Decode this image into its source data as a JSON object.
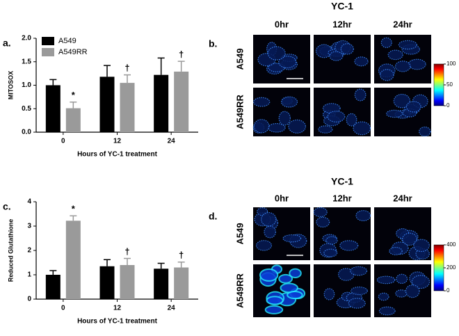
{
  "chart_data": [
    {
      "type": "bar",
      "panel_label": "a.",
      "y_label": "MITOSOX",
      "x_label": "Hours of YC-1 treatment",
      "categories": [
        "0",
        "12",
        "24"
      ],
      "series": [
        {
          "name": "A549",
          "color": "#000000",
          "values": [
            1.0,
            1.18,
            1.22
          ],
          "errors": [
            0.12,
            0.24,
            0.36
          ]
        },
        {
          "name": "A549RR",
          "color": "#9a9a9a",
          "values": [
            0.51,
            1.05,
            1.29
          ],
          "errors": [
            0.13,
            0.17,
            0.22
          ],
          "markers": [
            "*",
            "†",
            "†"
          ]
        }
      ],
      "ylim": [
        0,
        2
      ],
      "yticks": [
        {
          "value": 0,
          "label": "0.0"
        },
        {
          "value": 0.5,
          "label": "0.5"
        },
        {
          "value": 1,
          "label": "1.0"
        },
        {
          "value": 1.5,
          "label": "1.5"
        },
        {
          "value": 2,
          "label": "2.0"
        }
      ],
      "legend": "upper left"
    },
    {
      "type": "bar",
      "panel_label": "c.",
      "y_label": "Reduced Glutathione",
      "x_label": "Hours of YC-1 treatment",
      "categories": [
        "0",
        "12",
        "24"
      ],
      "series": [
        {
          "color": "#000000",
          "values": [
            1.0,
            1.35,
            1.25
          ],
          "errors": [
            0.17,
            0.27,
            0.22
          ]
        },
        {
          "color": "#9a9a9a",
          "values": [
            3.22,
            1.4,
            1.3
          ],
          "errors": [
            0.2,
            0.27,
            0.22
          ],
          "markers": [
            "*",
            "†",
            "†"
          ]
        }
      ],
      "ylim": [
        0,
        4
      ],
      "yticks": [
        0,
        1,
        2,
        3,
        4
      ]
    }
  ],
  "image_panels": [
    {
      "panel_label": "b.",
      "title": "YC-1",
      "columns": [
        "0hr",
        "12hr",
        "24hr"
      ],
      "rows": [
        "A549",
        "A549RR"
      ],
      "colorbar": {
        "lim": [
          0,
          100
        ],
        "ticks": [
          0,
          50,
          100
        ]
      }
    },
    {
      "panel_label": "d.",
      "title": "YC-1",
      "columns": [
        "0hr",
        "12hr",
        "24hr"
      ],
      "rows": [
        "A549",
        "A549RR"
      ],
      "colorbar": {
        "lim": [
          0,
          400
        ],
        "ticks": [
          0,
          200,
          400
        ]
      }
    }
  ]
}
